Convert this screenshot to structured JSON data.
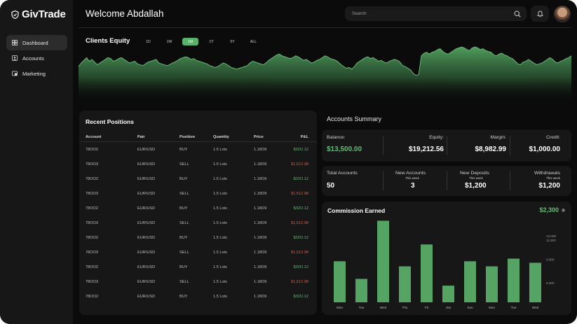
{
  "app": {
    "name": "GivTrade"
  },
  "sidebar": {
    "items": [
      {
        "label": "Dashboard",
        "icon": "dashboard-icon"
      },
      {
        "label": "Accounts",
        "icon": "accounts-icon"
      },
      {
        "label": "Marketing",
        "icon": "marketing-icon"
      }
    ]
  },
  "header": {
    "title": "Welcome Abdallah",
    "search_placeholder": "Search"
  },
  "equity": {
    "title": "Clients Equity",
    "ranges": [
      "1D",
      "1W",
      "1M",
      "1Y",
      "5Y",
      "ALL"
    ],
    "selected_range": "1M",
    "accent": "#59b26a"
  },
  "positions": {
    "title": "Recent Positions",
    "columns": [
      "Account",
      "Pair",
      "Position",
      "Quantity",
      "Price",
      "P&L"
    ],
    "rows": [
      [
        "78OO2",
        "EUR/USD",
        "BUY",
        "1.5 Lots",
        "1.18O9",
        "$32O.12"
      ],
      [
        "78OO3",
        "EUR/USD",
        "SELL",
        "1.5 Lots",
        "1.18O9",
        "$1,512.98"
      ],
      [
        "78OO2",
        "EUR/USD",
        "BUY",
        "1.5 Lots",
        "1.18O9",
        "$32O.12"
      ],
      [
        "78OO3",
        "EUR/USD",
        "SELL",
        "1.5 Lots",
        "1.18O9",
        "$1,512.98"
      ],
      [
        "78OO2",
        "EUR/USD",
        "BUY",
        "1.5 Lots",
        "1.18O9",
        "$32O.12"
      ],
      [
        "78OO3",
        "EUR/USD",
        "SELL",
        "1.5 Lots",
        "1.18O9",
        "$1,512.98"
      ],
      [
        "78OO2",
        "EUR/USD",
        "BUY",
        "1.5 Lots",
        "1.18O9",
        "$32O.12"
      ],
      [
        "78OO3",
        "EUR/USD",
        "SELL",
        "1.5 Lots",
        "1.18O9",
        "$1,512.98"
      ],
      [
        "78OO2",
        "EUR/USD",
        "BUY",
        "1.5 Lots",
        "1.18O9",
        "$32O.12"
      ],
      [
        "78OO3",
        "EUR/USD",
        "SELL",
        "1.5 Lots",
        "1.18O9",
        "$1,512.98"
      ],
      [
        "78OO2",
        "EUR/USD",
        "BUY",
        "1.5 Lots",
        "1.18O9",
        "$32O.12"
      ]
    ]
  },
  "accounts_summary": {
    "title": "Accounts Summary",
    "balance": {
      "label": "Balance:",
      "value": "$13,500.00"
    },
    "equity": {
      "label": "Equity:",
      "value": "$19,212.56"
    },
    "margin": {
      "label": "Margin:",
      "value": "$8,982.99"
    },
    "credit": {
      "label": "Credit:",
      "value": "$1,000.00"
    },
    "total_accounts": {
      "label": "Total Accounts",
      "value": "50"
    },
    "new_accounts": {
      "label": "New Accounts",
      "sub": "This week",
      "value": "3"
    },
    "new_deposits": {
      "label": "New Deposits",
      "sub": "This week",
      "value": "$1,200"
    },
    "withdrawals": {
      "label": "Withdrawals",
      "sub": "This week",
      "value": "$1,200"
    }
  },
  "commission": {
    "title": "Commission Earned",
    "value": "$2,300"
  },
  "chart_data": [
    {
      "type": "area",
      "title": "Clients Equity",
      "values": [
        40,
        44,
        47,
        50,
        46,
        48,
        45,
        42,
        44,
        46,
        48,
        50,
        49,
        46,
        47,
        49,
        50,
        48,
        46,
        44,
        45,
        46,
        43,
        42,
        41,
        43,
        45,
        46,
        47,
        48,
        44,
        43,
        42,
        41,
        42,
        44,
        45,
        47,
        49,
        50,
        51,
        50,
        48,
        49,
        47,
        46,
        45,
        44,
        43,
        41,
        40,
        39,
        40,
        42,
        44,
        43,
        41,
        39,
        38,
        37,
        38,
        39,
        40,
        41,
        44,
        46,
        45,
        44,
        43,
        42,
        44,
        47,
        49,
        51,
        53,
        54,
        52,
        51,
        50,
        49,
        50,
        52,
        51,
        49,
        47,
        48,
        46,
        44,
        45,
        47,
        48,
        50,
        52,
        51,
        49,
        48,
        47,
        45,
        42,
        40,
        38,
        39,
        37,
        40,
        44,
        46,
        48,
        50,
        51,
        49,
        50,
        48,
        46,
        47,
        45,
        44,
        46,
        47,
        48,
        47,
        45,
        41,
        40,
        38,
        36,
        32,
        30,
        31,
        52,
        55,
        56,
        54,
        56,
        57,
        59,
        60,
        57,
        55,
        54,
        56,
        58,
        60,
        61,
        62,
        61,
        59,
        58,
        61,
        62,
        61,
        59,
        60,
        58,
        57,
        56,
        53,
        52,
        54,
        55,
        53,
        52,
        50,
        49,
        46,
        43,
        42,
        45,
        46,
        48,
        46,
        44,
        42,
        43,
        44,
        46,
        48,
        50,
        48,
        45,
        44,
        46,
        47,
        49,
        50,
        52
      ],
      "ylim": [
        0,
        66
      ]
    },
    {
      "type": "bar",
      "title": "Commission Earned",
      "categories": [
        "Mon",
        "Tue",
        "Wed",
        "Thu",
        "Fri",
        "Sat",
        "Sun",
        "Mon",
        "Tue",
        "Wed"
      ],
      "values": [
        8790,
        6520,
        14010,
        8130,
        10960,
        5650,
        8790,
        8130,
        9130,
        8590
      ],
      "yticks": [
        6000,
        9000,
        11500,
        12000
      ],
      "ytick_labels": [
        "6,000",
        "9,000",
        "11,500",
        "12,000"
      ],
      "ylim": [
        3500,
        14500
      ]
    }
  ]
}
